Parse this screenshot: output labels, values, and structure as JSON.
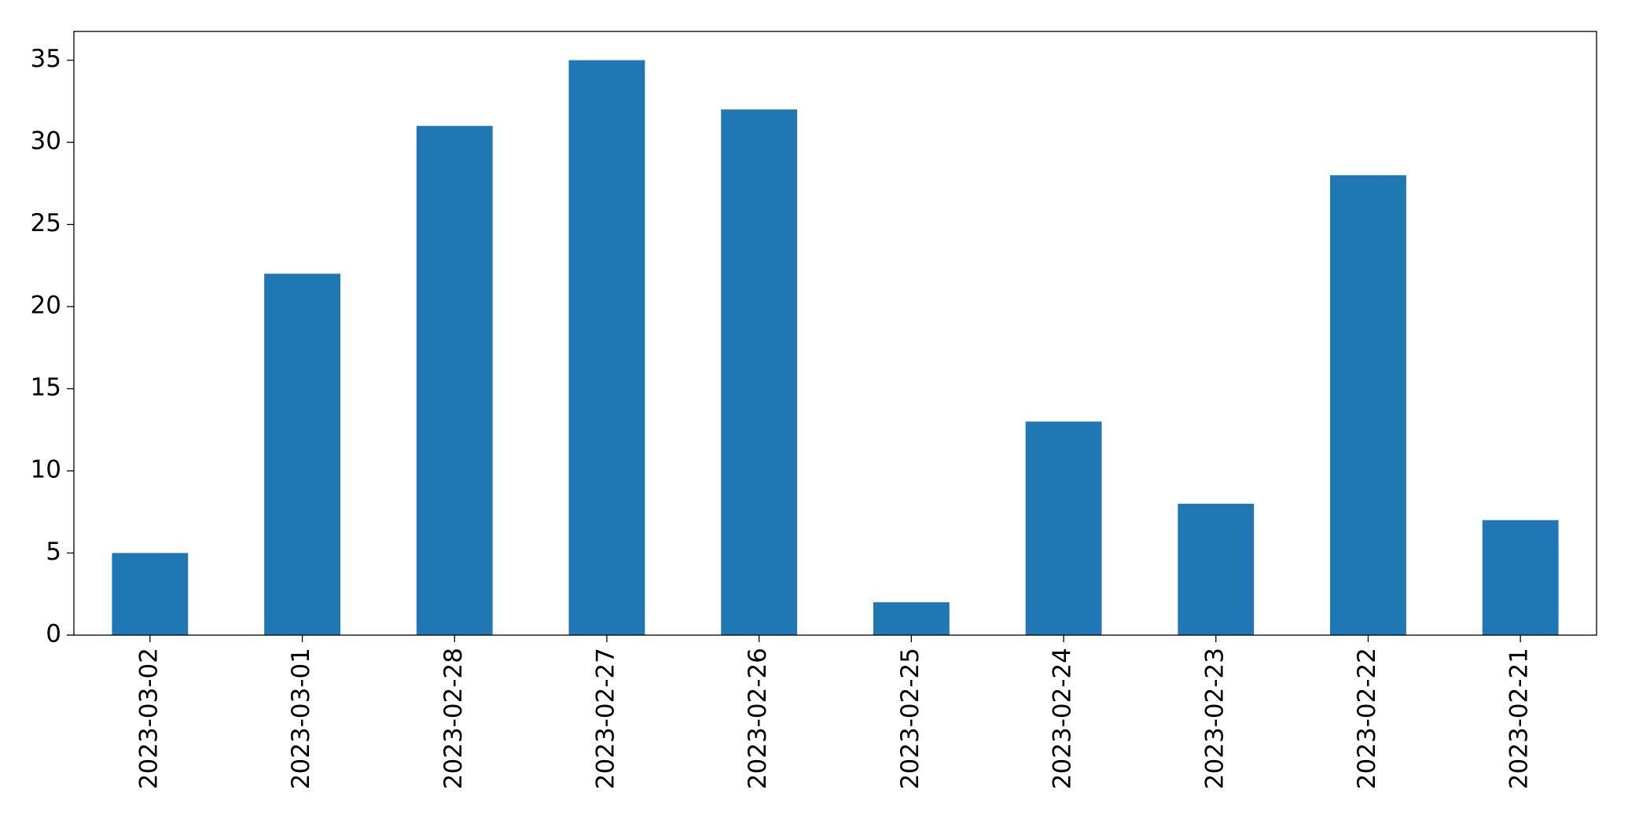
{
  "chart_data": {
    "type": "bar",
    "categories": [
      "2023-03-02",
      "2023-03-01",
      "2023-02-28",
      "2023-02-27",
      "2023-02-26",
      "2023-02-25",
      "2023-02-24",
      "2023-02-23",
      "2023-02-22",
      "2023-02-21"
    ],
    "values": [
      5,
      22,
      31,
      35,
      32,
      2,
      13,
      8,
      28,
      7
    ],
    "color": "#1f77b4",
    "ylim": [
      0,
      36.75
    ],
    "yticks": [
      0,
      5,
      10,
      15,
      20,
      25,
      30,
      35
    ],
    "grid": false
  }
}
